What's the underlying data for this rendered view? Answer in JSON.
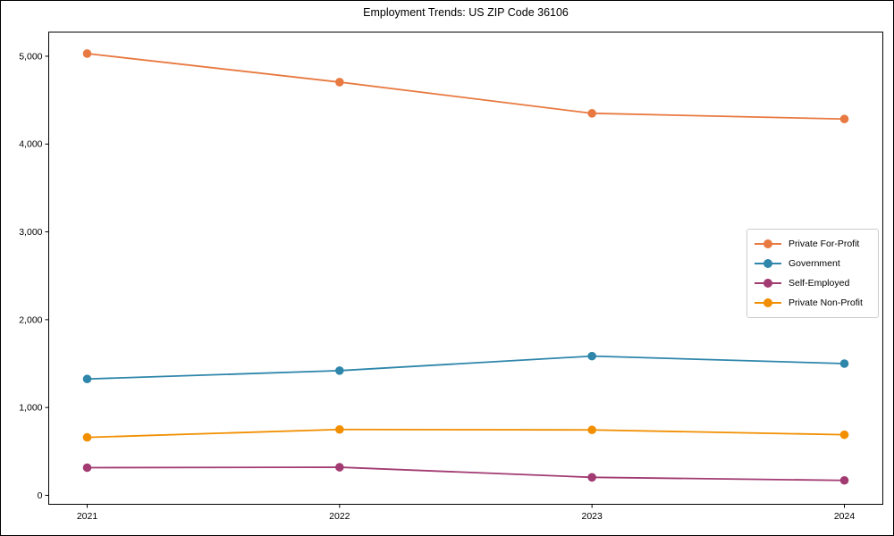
{
  "figure": {
    "background": "#ffffff",
    "border_color": "#000000",
    "axis_color": "#000000",
    "legend_border_color": "#cccccc"
  },
  "chart_data": {
    "type": "line",
    "title": "Employment Trends: US ZIP Code 36106",
    "xlabel": "",
    "ylabel": "",
    "x": [
      2021,
      2022,
      2023,
      2024
    ],
    "x_tick_labels": [
      "2021",
      "2022",
      "2023",
      "2024"
    ],
    "y_ticks": [
      0,
      1000,
      2000,
      3000,
      4000,
      5000
    ],
    "y_tick_labels": [
      "0",
      "1,000",
      "2,000",
      "3,000",
      "4,000",
      "5,000"
    ],
    "ylim": [
      -102,
      5274
    ],
    "grid": false,
    "legend_position": "right",
    "marker": "circle",
    "series": [
      {
        "name": "Private For-Profit",
        "color": "#E87940",
        "values": [
          5030,
          4705,
          4350,
          4285
        ]
      },
      {
        "name": "Government",
        "color": "#2E86AB",
        "values": [
          1325,
          1420,
          1585,
          1500
        ]
      },
      {
        "name": "Self-Employed",
        "color": "#A23B72",
        "values": [
          315,
          320,
          205,
          170
        ]
      },
      {
        "name": "Private Non-Profit",
        "color": "#F18F01",
        "values": [
          660,
          750,
          745,
          690
        ]
      }
    ]
  }
}
